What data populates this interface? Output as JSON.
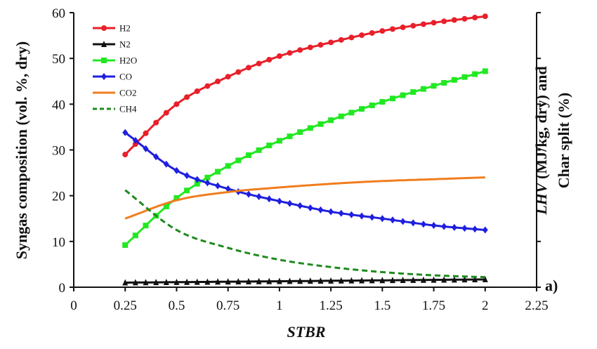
{
  "chart_data": {
    "type": "line",
    "xlabel": "STBR",
    "ylabel": "Syngas composition (vol. %, dry)",
    "y2label_line1": "LHV (MJ/kg, dry) and",
    "y2label_line1_italic": "LHV",
    "y2label_line1_rest": "(MJ/kg, dry) and",
    "y2label_line2": "Char split (%)",
    "panel_label": "a)",
    "xlim": [
      0,
      2.25
    ],
    "ylim": [
      0,
      60
    ],
    "xticks": [
      "0",
      "0.25",
      "0.5",
      "0.75",
      "1",
      "1.25",
      "1.5",
      "1.75",
      "2",
      "2.25"
    ],
    "xtick_values": [
      0,
      0.25,
      0.5,
      0.75,
      1,
      1.25,
      1.5,
      1.75,
      2,
      2.25
    ],
    "yticks": [
      "0",
      "10",
      "20",
      "30",
      "40",
      "50",
      "60"
    ],
    "ytick_values": [
      0,
      10,
      20,
      30,
      40,
      50,
      60
    ],
    "grid": false,
    "legend_position": "top-left",
    "x": [
      0.25,
      0.5,
      0.75,
      1.0,
      1.25,
      1.5,
      1.75,
      2.0
    ],
    "series": [
      {
        "name": "H2",
        "color": "#e8202a",
        "marker": "circle",
        "dash": false,
        "values": [
          29.0,
          40.0,
          46.0,
          50.5,
          53.5,
          56.0,
          57.8,
          59.2
        ]
      },
      {
        "name": "N2",
        "color": "#111111",
        "marker": "triangle",
        "dash": false,
        "values": [
          1.0,
          1.1,
          1.2,
          1.3,
          1.4,
          1.5,
          1.6,
          1.7
        ]
      },
      {
        "name": "H2O",
        "color": "#22e822",
        "marker": "square",
        "dash": false,
        "values": [
          9.2,
          19.5,
          26.5,
          32.0,
          36.5,
          40.5,
          44.0,
          47.2
        ]
      },
      {
        "name": "CO",
        "color": "#1f1fe0",
        "marker": "diamond",
        "dash": false,
        "values": [
          33.8,
          25.5,
          21.5,
          18.8,
          16.5,
          15.0,
          13.5,
          12.5
        ]
      },
      {
        "name": "CO2",
        "color": "#f07d1e",
        "marker": "none",
        "dash": false,
        "values": [
          15.0,
          19.0,
          20.8,
          21.8,
          22.6,
          23.2,
          23.6,
          24.0
        ]
      },
      {
        "name": "CH4",
        "color": "#1e8a1e",
        "marker": "none",
        "dash": true,
        "values": [
          21.2,
          12.5,
          8.6,
          6.0,
          4.4,
          3.3,
          2.6,
          2.2
        ]
      }
    ]
  }
}
